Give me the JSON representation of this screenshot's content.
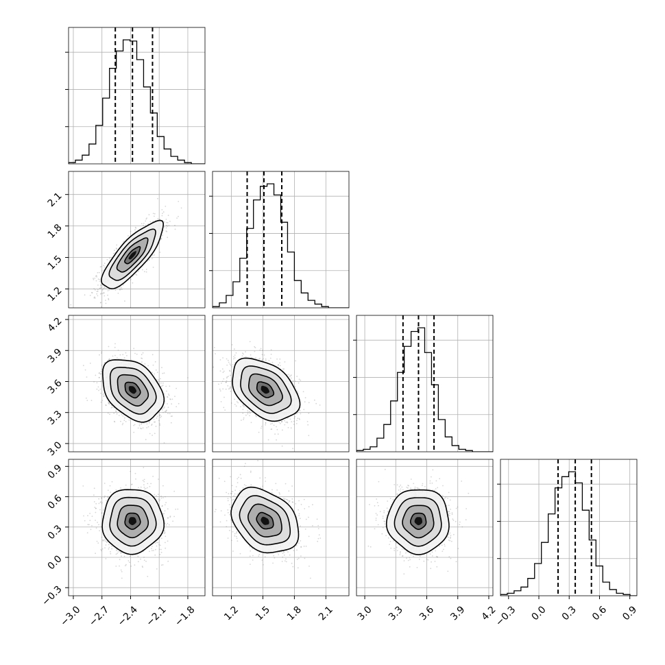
{
  "chart_data": {
    "type": "corner",
    "title": "",
    "grid": true,
    "parameters": [
      {
        "range": [
          -3.05,
          -1.62
        ],
        "ticks": [
          -3.0,
          -2.7,
          -2.4,
          -2.1,
          -1.8
        ],
        "tick_labels": [
          "−3.0",
          "−2.7",
          "−2.4",
          "−2.1",
          "−1.8"
        ],
        "quantiles": [
          -2.56,
          -2.38,
          -2.17
        ],
        "hist_bin_edges": [
          -3.05,
          -2.9785,
          -2.907,
          -2.8355,
          -2.764,
          -2.6925,
          -2.621,
          -2.5495,
          -2.478,
          -2.4065,
          -2.335,
          -2.2635,
          -2.192,
          -2.1205,
          -2.049,
          -1.9775,
          -1.906,
          -1.8345,
          -1.763,
          -1.6915,
          -1.62
        ],
        "hist_counts": [
          1,
          3,
          7,
          16,
          31,
          53,
          77,
          91,
          100,
          99,
          84,
          62,
          41,
          22,
          12,
          6,
          3,
          1,
          0,
          0
        ]
      },
      {
        "range": [
          1.02,
          2.32
        ],
        "ticks": [
          1.2,
          1.5,
          1.8,
          2.1
        ],
        "tick_labels": [
          "1.2",
          "1.5",
          "1.8",
          "2.1"
        ],
        "quantiles": [
          1.35,
          1.51,
          1.68
        ],
        "hist_bin_edges": [
          1.02,
          1.085,
          1.15,
          1.215,
          1.28,
          1.345,
          1.41,
          1.475,
          1.54,
          1.605,
          1.67,
          1.735,
          1.8,
          1.865,
          1.93,
          1.995,
          2.06,
          2.125,
          2.19,
          2.255,
          2.32
        ],
        "hist_counts": [
          1,
          4,
          10,
          21,
          40,
          64,
          87,
          98,
          100,
          91,
          69,
          45,
          22,
          12,
          6,
          3,
          1,
          0,
          0,
          0
        ]
      },
      {
        "range": [
          2.92,
          4.24
        ],
        "ticks": [
          3.0,
          3.3,
          3.6,
          3.9,
          4.2
        ],
        "tick_labels": [
          "3.0",
          "3.3",
          "3.6",
          "3.9",
          "4.2"
        ],
        "quantiles": [
          3.37,
          3.52,
          3.67
        ],
        "hist_bin_edges": [
          2.92,
          2.986,
          3.052,
          3.118,
          3.184,
          3.25,
          3.316,
          3.382,
          3.448,
          3.514,
          3.58,
          3.646,
          3.712,
          3.778,
          3.844,
          3.91,
          3.976,
          4.042,
          4.108,
          4.174,
          4.24
        ],
        "hist_counts": [
          1,
          2,
          4,
          11,
          22,
          41,
          64,
          85,
          97,
          100,
          80,
          54,
          26,
          12,
          5,
          2,
          1,
          0,
          0,
          0
        ]
      },
      {
        "range": [
          -0.38,
          0.97
        ],
        "ticks": [
          -0.3,
          0.0,
          0.3,
          0.6,
          0.9
        ],
        "tick_labels": [
          "−0.3",
          "0.0",
          "0.3",
          "0.6",
          "0.9"
        ],
        "quantiles": [
          0.19,
          0.36,
          0.52
        ],
        "hist_bin_edges": [
          -0.38,
          -0.3125,
          -0.245,
          -0.1775,
          -0.11,
          -0.0425,
          0.025,
          0.0925,
          0.16,
          0.2275,
          0.295,
          0.3625,
          0.43,
          0.4975,
          0.565,
          0.6325,
          0.7,
          0.7675,
          0.835,
          0.9025,
          0.97
        ],
        "hist_counts": [
          1,
          2,
          4,
          7,
          14,
          26,
          43,
          66,
          87,
          96,
          100,
          91,
          69,
          45,
          24,
          11,
          5,
          2,
          1,
          0
        ]
      }
    ],
    "pairs": [
      {
        "row": 1,
        "col": 0,
        "mean": [
          -2.38,
          1.52
        ],
        "sd": [
          0.16,
          0.16
        ],
        "corr": 0.8
      },
      {
        "row": 2,
        "col": 0,
        "mean": [
          -2.38,
          3.52
        ],
        "sd": [
          0.16,
          0.15
        ],
        "corr": -0.35
      },
      {
        "row": 2,
        "col": 1,
        "mean": [
          1.52,
          3.52
        ],
        "sd": [
          0.16,
          0.15
        ],
        "corr": -0.4
      },
      {
        "row": 3,
        "col": 0,
        "mean": [
          -2.38,
          0.36
        ],
        "sd": [
          0.16,
          0.16
        ],
        "corr": 0.0
      },
      {
        "row": 3,
        "col": 1,
        "mean": [
          1.52,
          0.36
        ],
        "sd": [
          0.16,
          0.16
        ],
        "corr": -0.3
      },
      {
        "row": 3,
        "col": 2,
        "mean": [
          3.52,
          0.36
        ],
        "sd": [
          0.15,
          0.16
        ],
        "corr": 0.0
      }
    ],
    "contour_levels_sigma": [
      0.5,
      1.0,
      1.5,
      2.0
    ]
  }
}
